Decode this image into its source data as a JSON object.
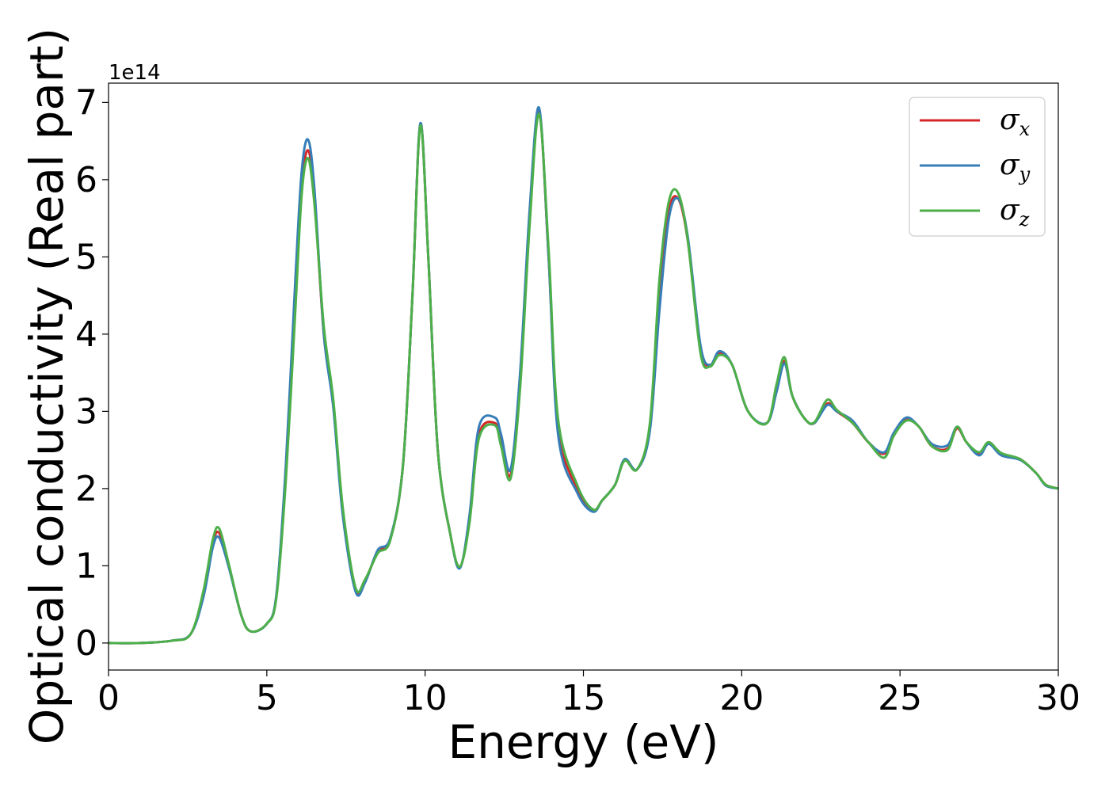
{
  "chart_data": {
    "type": "line",
    "title": "",
    "xlabel": "Energy (eV)",
    "ylabel": "Optical conductivity (Real part)",
    "y_offset_label": "1e14",
    "xlim": [
      0,
      30
    ],
    "ylim": [
      -0.35,
      7.25
    ],
    "x_ticks": [
      0,
      5,
      10,
      15,
      20,
      25,
      30
    ],
    "x_tick_labels": [
      "0",
      "5",
      "10",
      "15",
      "20",
      "25",
      "30"
    ],
    "y_ticks": [
      0,
      1,
      2,
      3,
      4,
      5,
      6,
      7
    ],
    "y_tick_labels": [
      "0",
      "1",
      "2",
      "3",
      "4",
      "5",
      "6",
      "7"
    ],
    "grid": false,
    "legend_position": "top-right",
    "series": [
      {
        "name": "σx",
        "legend_symbol": "σ",
        "legend_sub": "x",
        "color": "#d62728",
        "points": [
          [
            0,
            0
          ],
          [
            1,
            0
          ],
          [
            2,
            0.03
          ],
          [
            2.6,
            0.12
          ],
          [
            3,
            0.65
          ],
          [
            3.3,
            1.3
          ],
          [
            3.5,
            1.42
          ],
          [
            3.8,
            1.0
          ],
          [
            4.2,
            0.35
          ],
          [
            4.5,
            0.15
          ],
          [
            5,
            0.25
          ],
          [
            5.3,
            0.6
          ],
          [
            5.6,
            2.2
          ],
          [
            5.9,
            4.5
          ],
          [
            6.1,
            5.9
          ],
          [
            6.3,
            6.38
          ],
          [
            6.5,
            5.8
          ],
          [
            6.8,
            4.0
          ],
          [
            7.1,
            3.1
          ],
          [
            7.4,
            1.7
          ],
          [
            7.8,
            0.7
          ],
          [
            8.1,
            0.8
          ],
          [
            8.5,
            1.18
          ],
          [
            8.9,
            1.35
          ],
          [
            9.3,
            2.3
          ],
          [
            9.6,
            4.5
          ],
          [
            9.85,
            6.72
          ],
          [
            10.1,
            5.0
          ],
          [
            10.4,
            2.5
          ],
          [
            10.8,
            1.4
          ],
          [
            11.1,
            0.98
          ],
          [
            11.4,
            1.6
          ],
          [
            11.7,
            2.7
          ],
          [
            12.2,
            2.85
          ],
          [
            12.4,
            2.6
          ],
          [
            12.7,
            2.18
          ],
          [
            13,
            3.4
          ],
          [
            13.3,
            5.5
          ],
          [
            13.6,
            6.9
          ],
          [
            13.9,
            5.0
          ],
          [
            14.2,
            2.8
          ],
          [
            14.8,
            2.0
          ],
          [
            15.3,
            1.72
          ],
          [
            15.6,
            1.85
          ],
          [
            16,
            2.05
          ],
          [
            16.3,
            2.37
          ],
          [
            16.7,
            2.25
          ],
          [
            17.1,
            2.8
          ],
          [
            17.4,
            4.5
          ],
          [
            17.7,
            5.6
          ],
          [
            18,
            5.75
          ],
          [
            18.3,
            5.2
          ],
          [
            18.7,
            3.8
          ],
          [
            19,
            3.6
          ],
          [
            19.3,
            3.75
          ],
          [
            19.7,
            3.6
          ],
          [
            20.2,
            3.0
          ],
          [
            20.8,
            2.85
          ],
          [
            21.1,
            3.3
          ],
          [
            21.35,
            3.65
          ],
          [
            21.6,
            3.2
          ],
          [
            22,
            2.9
          ],
          [
            22.3,
            2.85
          ],
          [
            22.7,
            3.1
          ],
          [
            23,
            3.0
          ],
          [
            23.5,
            2.85
          ],
          [
            24,
            2.6
          ],
          [
            24.5,
            2.45
          ],
          [
            24.8,
            2.7
          ],
          [
            25.2,
            2.9
          ],
          [
            25.6,
            2.8
          ],
          [
            26,
            2.55
          ],
          [
            26.5,
            2.52
          ],
          [
            26.8,
            2.78
          ],
          [
            27.1,
            2.6
          ],
          [
            27.5,
            2.45
          ],
          [
            27.8,
            2.6
          ],
          [
            28.2,
            2.45
          ],
          [
            28.8,
            2.38
          ],
          [
            29.3,
            2.2
          ],
          [
            29.6,
            2.05
          ],
          [
            30,
            2.0
          ]
        ]
      },
      {
        "name": "σy",
        "legend_symbol": "σ",
        "legend_sub": "y",
        "color": "#377eb8",
        "points": [
          [
            0,
            0
          ],
          [
            1,
            0
          ],
          [
            2,
            0.03
          ],
          [
            2.6,
            0.12
          ],
          [
            3,
            0.6
          ],
          [
            3.3,
            1.25
          ],
          [
            3.5,
            1.36
          ],
          [
            3.8,
            0.98
          ],
          [
            4.2,
            0.35
          ],
          [
            4.5,
            0.15
          ],
          [
            5,
            0.25
          ],
          [
            5.3,
            0.62
          ],
          [
            5.6,
            2.3
          ],
          [
            5.9,
            4.7
          ],
          [
            6.1,
            6.1
          ],
          [
            6.3,
            6.52
          ],
          [
            6.5,
            5.9
          ],
          [
            6.8,
            4.0
          ],
          [
            7.1,
            3.05
          ],
          [
            7.4,
            1.65
          ],
          [
            7.8,
            0.67
          ],
          [
            8.1,
            0.78
          ],
          [
            8.5,
            1.2
          ],
          [
            8.9,
            1.36
          ],
          [
            9.3,
            2.3
          ],
          [
            9.6,
            4.5
          ],
          [
            9.85,
            6.73
          ],
          [
            10.1,
            5.0
          ],
          [
            10.4,
            2.5
          ],
          [
            10.8,
            1.4
          ],
          [
            11.1,
            0.97
          ],
          [
            11.4,
            1.65
          ],
          [
            11.7,
            2.8
          ],
          [
            12.2,
            2.92
          ],
          [
            12.4,
            2.7
          ],
          [
            12.7,
            2.25
          ],
          [
            13,
            3.5
          ],
          [
            13.3,
            5.6
          ],
          [
            13.6,
            6.93
          ],
          [
            13.9,
            5.0
          ],
          [
            14.2,
            2.7
          ],
          [
            14.8,
            1.95
          ],
          [
            15.3,
            1.7
          ],
          [
            15.6,
            1.85
          ],
          [
            16,
            2.05
          ],
          [
            16.3,
            2.38
          ],
          [
            16.7,
            2.25
          ],
          [
            17.1,
            2.75
          ],
          [
            17.4,
            4.3
          ],
          [
            17.7,
            5.5
          ],
          [
            18,
            5.75
          ],
          [
            18.3,
            5.25
          ],
          [
            18.7,
            3.85
          ],
          [
            19,
            3.6
          ],
          [
            19.3,
            3.78
          ],
          [
            19.7,
            3.6
          ],
          [
            20.2,
            3.0
          ],
          [
            20.8,
            2.85
          ],
          [
            21.1,
            3.25
          ],
          [
            21.35,
            3.62
          ],
          [
            21.6,
            3.2
          ],
          [
            22,
            2.9
          ],
          [
            22.3,
            2.85
          ],
          [
            22.7,
            3.08
          ],
          [
            23,
            3.0
          ],
          [
            23.5,
            2.88
          ],
          [
            24,
            2.6
          ],
          [
            24.5,
            2.47
          ],
          [
            24.8,
            2.72
          ],
          [
            25.2,
            2.92
          ],
          [
            25.6,
            2.8
          ],
          [
            26,
            2.58
          ],
          [
            26.5,
            2.56
          ],
          [
            26.8,
            2.8
          ],
          [
            27.1,
            2.6
          ],
          [
            27.5,
            2.43
          ],
          [
            27.8,
            2.58
          ],
          [
            28.2,
            2.43
          ],
          [
            28.8,
            2.37
          ],
          [
            29.3,
            2.2
          ],
          [
            29.6,
            2.04
          ],
          [
            30,
            2.0
          ]
        ]
      },
      {
        "name": "σz",
        "legend_symbol": "σ",
        "legend_sub": "z",
        "color": "#4daf4a",
        "points": [
          [
            0,
            0
          ],
          [
            1,
            0
          ],
          [
            2,
            0.03
          ],
          [
            2.6,
            0.12
          ],
          [
            3,
            0.68
          ],
          [
            3.3,
            1.35
          ],
          [
            3.5,
            1.48
          ],
          [
            3.8,
            1.02
          ],
          [
            4.2,
            0.35
          ],
          [
            4.5,
            0.15
          ],
          [
            5,
            0.25
          ],
          [
            5.3,
            0.58
          ],
          [
            5.6,
            2.1
          ],
          [
            5.9,
            4.3
          ],
          [
            6.1,
            5.8
          ],
          [
            6.3,
            6.28
          ],
          [
            6.5,
            5.7
          ],
          [
            6.8,
            4.1
          ],
          [
            7.1,
            3.15
          ],
          [
            7.4,
            1.75
          ],
          [
            7.8,
            0.72
          ],
          [
            8.1,
            0.82
          ],
          [
            8.5,
            1.16
          ],
          [
            8.9,
            1.33
          ],
          [
            9.3,
            2.3
          ],
          [
            9.6,
            4.5
          ],
          [
            9.85,
            6.7
          ],
          [
            10.1,
            5.0
          ],
          [
            10.4,
            2.5
          ],
          [
            10.8,
            1.4
          ],
          [
            11.1,
            0.99
          ],
          [
            11.4,
            1.55
          ],
          [
            11.7,
            2.65
          ],
          [
            12.2,
            2.82
          ],
          [
            12.4,
            2.55
          ],
          [
            12.7,
            2.13
          ],
          [
            13,
            3.3
          ],
          [
            13.3,
            5.4
          ],
          [
            13.6,
            6.85
          ],
          [
            13.9,
            5.1
          ],
          [
            14.2,
            2.9
          ],
          [
            14.8,
            2.05
          ],
          [
            15.3,
            1.73
          ],
          [
            15.6,
            1.85
          ],
          [
            16,
            2.05
          ],
          [
            16.3,
            2.36
          ],
          [
            16.7,
            2.25
          ],
          [
            17.1,
            2.85
          ],
          [
            17.4,
            4.7
          ],
          [
            17.7,
            5.72
          ],
          [
            18,
            5.82
          ],
          [
            18.3,
            5.2
          ],
          [
            18.7,
            3.75
          ],
          [
            19,
            3.58
          ],
          [
            19.3,
            3.73
          ],
          [
            19.7,
            3.6
          ],
          [
            20.2,
            3.0
          ],
          [
            20.8,
            2.85
          ],
          [
            21.1,
            3.35
          ],
          [
            21.35,
            3.7
          ],
          [
            21.6,
            3.2
          ],
          [
            22,
            2.9
          ],
          [
            22.3,
            2.86
          ],
          [
            22.7,
            3.15
          ],
          [
            23,
            3.02
          ],
          [
            23.5,
            2.85
          ],
          [
            24,
            2.6
          ],
          [
            24.5,
            2.4
          ],
          [
            24.8,
            2.68
          ],
          [
            25.2,
            2.88
          ],
          [
            25.6,
            2.8
          ],
          [
            26,
            2.55
          ],
          [
            26.5,
            2.5
          ],
          [
            26.8,
            2.8
          ],
          [
            27.1,
            2.6
          ],
          [
            27.5,
            2.47
          ],
          [
            27.8,
            2.6
          ],
          [
            28.2,
            2.46
          ],
          [
            28.8,
            2.38
          ],
          [
            29.3,
            2.2
          ],
          [
            29.6,
            2.05
          ],
          [
            30,
            2.0
          ]
        ]
      }
    ]
  }
}
